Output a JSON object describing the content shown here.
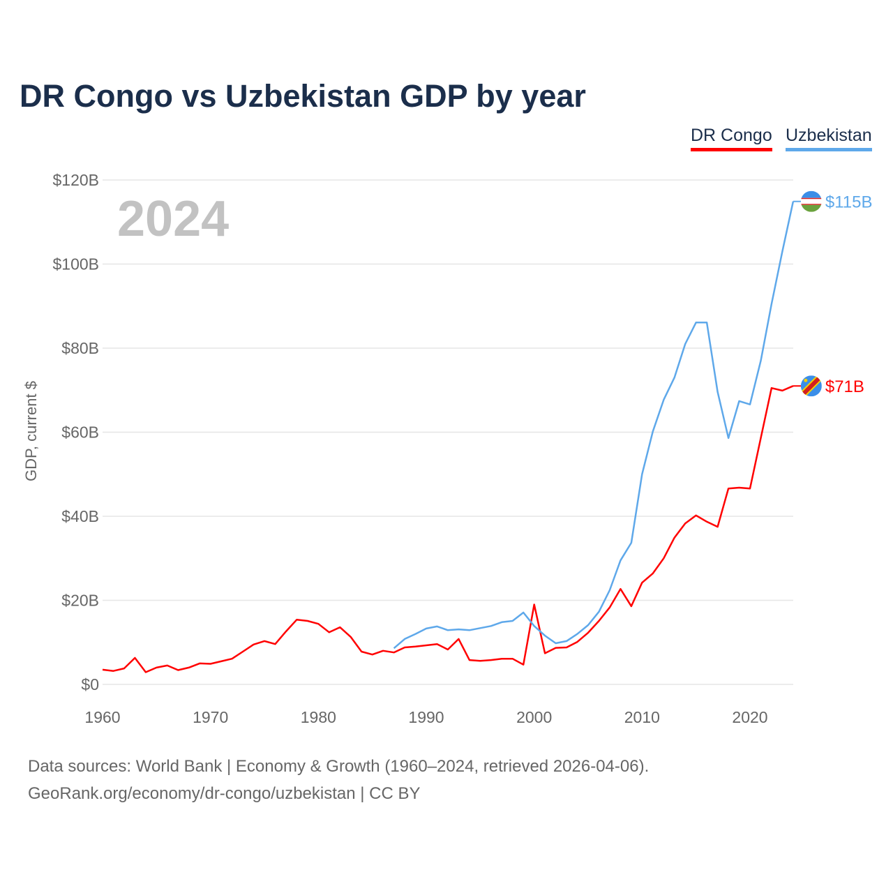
{
  "title": "DR Congo vs Uzbekistan GDP by year",
  "footer": {
    "sources": "Data sources: World Bank | Economy & Growth (1960–2024, retrieved 2026-04-06).",
    "credit": "GeoRank.org/economy/dr-congo/uzbekistan | CC BY"
  },
  "chart_data": {
    "type": "line",
    "title": "DR Congo vs Uzbekistan GDP by year",
    "ylabel": "GDP, current $",
    "xlabel": "",
    "year_label": "2024",
    "xlim": [
      1960,
      2024
    ],
    "ylim": [
      0,
      120
    ],
    "x_ticks": [
      "1960",
      "1970",
      "1980",
      "1990",
      "2000",
      "2010",
      "2020"
    ],
    "y_ticks": [
      {
        "v": 0,
        "label": "$0"
      },
      {
        "v": 20,
        "label": "$20B"
      },
      {
        "v": 40,
        "label": "$40B"
      },
      {
        "v": 60,
        "label": "$60B"
      },
      {
        "v": 80,
        "label": "$80B"
      },
      {
        "v": 100,
        "label": "$100B"
      },
      {
        "v": 120,
        "label": "$120B"
      }
    ],
    "grid": true,
    "legend": "top-right",
    "series": [
      {
        "name": "DR Congo",
        "color": "#ff0000",
        "end_label": "$71B",
        "flag": "dr-congo-flag-icon",
        "start": 1960,
        "values": [
          3.5,
          3.2,
          3.8,
          6.3,
          2.9,
          4.0,
          4.5,
          3.4,
          4.0,
          5.0,
          4.9,
          5.5,
          6.1,
          7.8,
          9.5,
          10.3,
          9.6,
          12.6,
          15.4,
          15.1,
          14.4,
          12.4,
          13.6,
          11.3,
          7.8,
          7.1,
          8.0,
          7.6,
          8.8,
          9.0,
          9.3,
          9.6,
          8.3,
          10.8,
          5.8,
          5.6,
          5.8,
          6.1,
          6.1,
          4.7,
          19.0,
          7.4,
          8.7,
          8.8,
          10.1,
          12.3,
          15.1,
          18.3,
          22.7,
          18.6,
          24.2,
          26.4,
          30.0,
          34.9,
          38.3,
          40.2,
          38.7,
          37.5,
          46.6,
          46.8,
          46.6,
          58.6,
          70.5,
          69.9,
          71.0
        ]
      },
      {
        "name": "Uzbekistan",
        "color": "#5ea8ea",
        "end_label": "$115B",
        "flag": "uzbekistan-flag-icon",
        "start": 1987,
        "values": [
          8.6,
          10.8,
          12.0,
          13.3,
          13.8,
          12.9,
          13.1,
          12.9,
          13.4,
          13.9,
          14.8,
          15.1,
          17.1,
          13.9,
          11.6,
          9.8,
          10.3,
          12.0,
          14.1,
          17.3,
          22.4,
          29.5,
          33.7,
          50.0,
          60.2,
          67.7,
          73.0,
          81.0,
          86.1,
          86.1,
          69.6,
          58.6,
          67.4,
          66.6,
          77.0,
          90.5,
          103.0,
          114.9
        ]
      }
    ]
  }
}
